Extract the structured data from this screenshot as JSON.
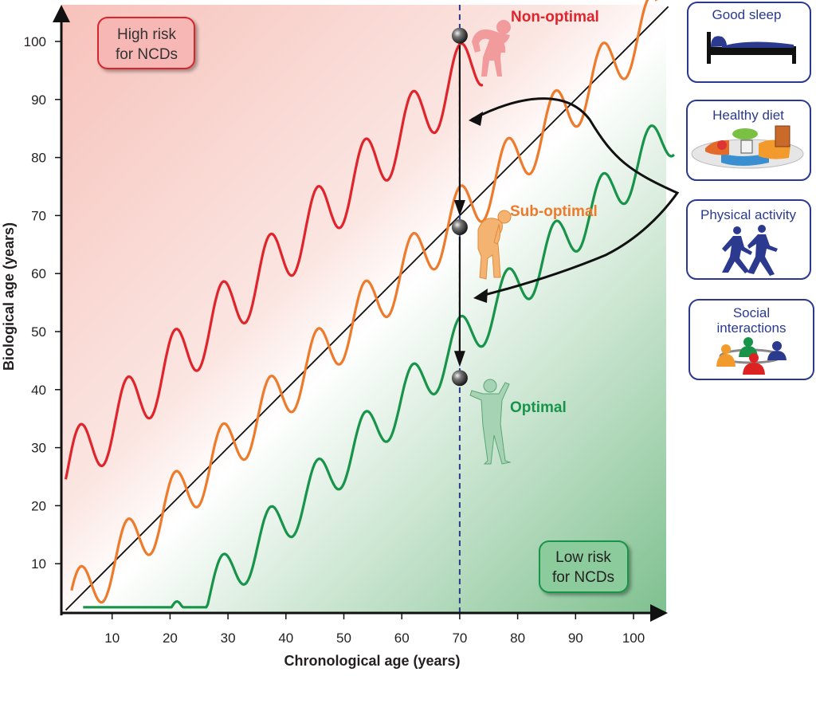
{
  "risk_boxes": {
    "high": [
      "High risk",
      "for NCDs"
    ],
    "low": [
      "Low risk",
      "for NCDs"
    ]
  },
  "curve_labels": {
    "non_optimal": "Non-optimal",
    "sub_optimal": "Sub-optimal",
    "optimal": "Optimal"
  },
  "interventions": [
    {
      "title": [
        "Good sleep"
      ],
      "icon": "bed-icon"
    },
    {
      "title": [
        "Healthy diet"
      ],
      "icon": "food-plate-icon"
    },
    {
      "title": [
        "Physical activity"
      ],
      "icon": "runners-icon"
    },
    {
      "title": [
        "Social",
        "interactions"
      ],
      "icon": "people-icon"
    }
  ],
  "colors": {
    "non_optimal": "#e0242b",
    "sub_optimal": "#ee7a2b",
    "optimal": "#17944a",
    "high_risk_fill": "#f8c9c4",
    "low_risk_fill": "#8fc79d",
    "card_border": "#2b3a8f",
    "marker_line": "#2b3a8f"
  },
  "chart_data": {
    "type": "line",
    "xlabel": "Chronological age (years)",
    "ylabel": "Biological age (years)",
    "xticks": [
      10,
      20,
      30,
      40,
      50,
      60,
      70,
      80,
      90,
      100
    ],
    "yticks": [
      10,
      20,
      30,
      40,
      50,
      60,
      70,
      80,
      90,
      100
    ],
    "xlim": [
      2,
      106
    ],
    "ylim": [
      2,
      108
    ],
    "reference_line": "biological age = chronological age",
    "marker_age": 70,
    "series": [
      {
        "key": "non_optimal",
        "name": "Non-optimal",
        "offset": 24,
        "amplitude": 5.5,
        "period": 8.2,
        "x_start": 2,
        "x_end": 74,
        "value_at_70": 101
      },
      {
        "key": "sub_optimal",
        "name": "Sub-optimal",
        "offset": 0,
        "amplitude": 5,
        "period": 8.2,
        "x_start": 3,
        "x_end": 104,
        "value_at_70": 68
      },
      {
        "key": "optimal",
        "name": "Optimal",
        "offset": -22,
        "amplitude": 4.5,
        "period": 8.2,
        "x_start": 5,
        "x_end": 107,
        "value_at_70": 42
      }
    ]
  }
}
